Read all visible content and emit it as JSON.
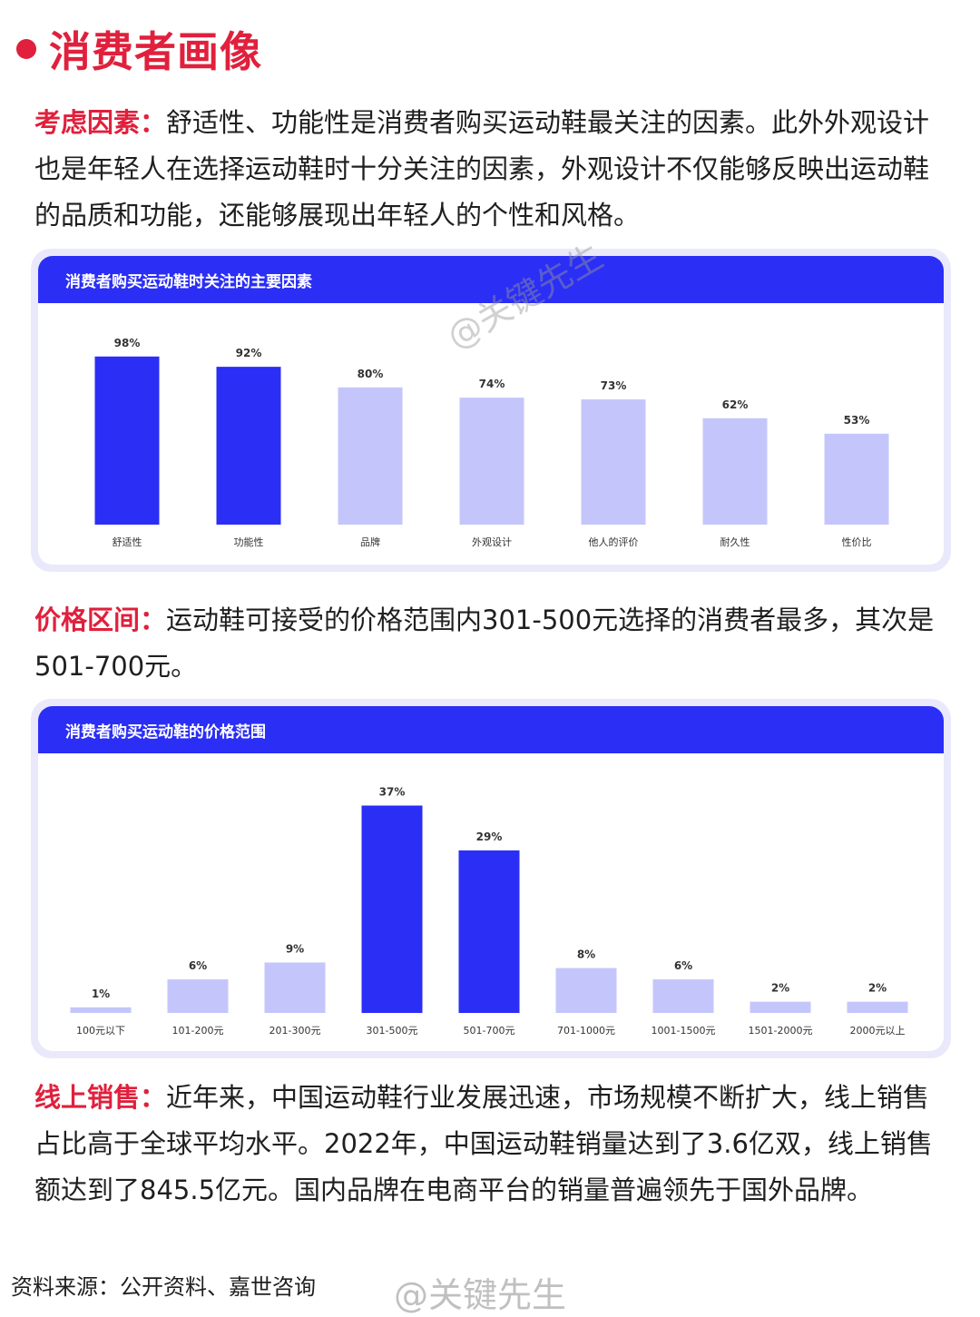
{
  "section": {
    "title": "消费者画像"
  },
  "para1": {
    "lead": "考虑因素：",
    "text": "舒适性、功能性是消费者购买运动鞋最关注的因素。此外外观设计也是年轻人在选择运动鞋时十分关注的因素，外观设计不仅能够反映出运动鞋的品质和功能，还能够展现出年轻人的个性和风格。"
  },
  "para2": {
    "lead": "价格区间：",
    "text": "运动鞋可接受的价格范围内301-500元选择的消费者最多，其次是501-700元。"
  },
  "para3": {
    "lead": "线上销售：",
    "text": "近年来，中国运动鞋行业发展迅速，市场规模不断扩大，线上销售占比高于全球平均水平。2022年，中国运动鞋销量达到了3.6亿双，线上销售额达到了845.5亿元。国内品牌在电商平台的销量普遍领先于国外品牌。"
  },
  "source": "资料来源：公开资料、嘉世咨询",
  "watermark": "@关键先生",
  "colors": {
    "accent": "#e0203c",
    "primary_bar": "#2b2ef5",
    "secondary_bar": "#c4c6fb"
  },
  "chart_data": [
    {
      "type": "bar",
      "title": "消费者购买运动鞋时关注的主要因素",
      "categories": [
        "舒适性",
        "功能性",
        "品牌",
        "外观设计",
        "他人的评价",
        "耐久性",
        "性价比"
      ],
      "values": [
        98,
        92,
        80,
        74,
        73,
        62,
        53
      ],
      "value_labels": [
        "98%",
        "92%",
        "80%",
        "74%",
        "73%",
        "62%",
        "53%"
      ],
      "highlight": [
        true,
        true,
        false,
        false,
        false,
        false,
        false
      ],
      "ylim": [
        0,
        100
      ],
      "grid": false
    },
    {
      "type": "bar",
      "title": "消费者购买运动鞋的价格范围",
      "categories": [
        "100元以下",
        "101-200元",
        "201-300元",
        "301-500元",
        "501-700元",
        "701-1000元",
        "1001-1500元",
        "1501-2000元",
        "2000元以上"
      ],
      "values": [
        1,
        6,
        9,
        37,
        29,
        8,
        6,
        2,
        2
      ],
      "value_labels": [
        "1%",
        "6%",
        "9%",
        "37%",
        "29%",
        "8%",
        "6%",
        "2%",
        "2%"
      ],
      "highlight": [
        false,
        false,
        false,
        true,
        true,
        false,
        false,
        false,
        false
      ],
      "ylim": [
        0,
        40
      ],
      "grid": false
    }
  ]
}
